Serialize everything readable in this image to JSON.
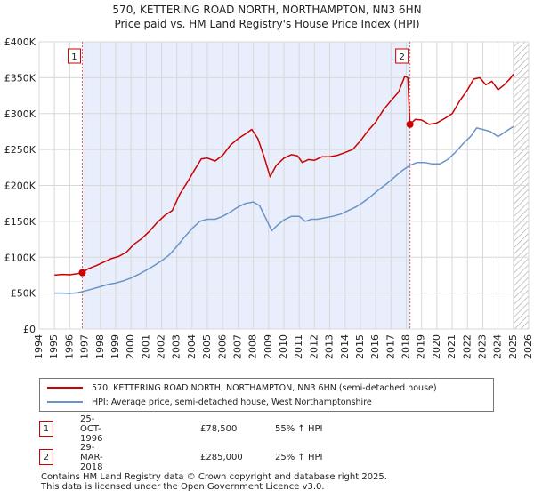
{
  "chart_data": {
    "type": "line",
    "title": "570, KETTERING ROAD NORTH, NORTHAMPTON, NN3 6HN",
    "subtitle": "Price paid vs. HM Land Registry's House Price Index (HPI)",
    "xlim": [
      1994,
      2026
    ],
    "ylim": [
      0,
      400000
    ],
    "x_ticks": [
      "1994",
      "1995",
      "1996",
      "1997",
      "1998",
      "1999",
      "2000",
      "2001",
      "2002",
      "2003",
      "2004",
      "2005",
      "2006",
      "2007",
      "2008",
      "2009",
      "2010",
      "2011",
      "2012",
      "2013",
      "2014",
      "2015",
      "2016",
      "2017",
      "2018",
      "2019",
      "2020",
      "2021",
      "2022",
      "2023",
      "2024",
      "2025",
      "2026"
    ],
    "y_ticks": [
      {
        "value": 0,
        "label": "£0"
      },
      {
        "value": 50000,
        "label": "£50K"
      },
      {
        "value": 100000,
        "label": "£100K"
      },
      {
        "value": 150000,
        "label": "£150K"
      },
      {
        "value": 200000,
        "label": "£200K"
      },
      {
        "value": 250000,
        "label": "£250K"
      },
      {
        "value": 300000,
        "label": "£300K"
      },
      {
        "value": 350000,
        "label": "£350K"
      },
      {
        "value": 400000,
        "label": "£400K"
      }
    ],
    "grid": true,
    "shaded_span": [
      1996.82,
      2018.24
    ],
    "hatched_after": 2025.0,
    "series": [
      {
        "name": "570, KETTERING ROAD NORTH, NORTHAMPTON, NN3 6HN (semi-detached house)",
        "color": "#cc0000",
        "points": [
          [
            1995.0,
            75000
          ],
          [
            1995.5,
            76000
          ],
          [
            1996.0,
            75500
          ],
          [
            1996.5,
            77000
          ],
          [
            1996.82,
            78500
          ],
          [
            1997.2,
            84000
          ],
          [
            1997.7,
            88000
          ],
          [
            1998.2,
            93000
          ],
          [
            1998.7,
            98000
          ],
          [
            1999.2,
            101000
          ],
          [
            1999.7,
            107000
          ],
          [
            2000.2,
            118000
          ],
          [
            2000.7,
            126000
          ],
          [
            2001.2,
            136000
          ],
          [
            2001.7,
            148000
          ],
          [
            2002.2,
            158000
          ],
          [
            2002.7,
            165000
          ],
          [
            2003.2,
            188000
          ],
          [
            2003.7,
            205000
          ],
          [
            2004.2,
            223000
          ],
          [
            2004.6,
            237000
          ],
          [
            2005.0,
            238000
          ],
          [
            2005.5,
            234000
          ],
          [
            2006.0,
            242000
          ],
          [
            2006.5,
            256000
          ],
          [
            2007.0,
            265000
          ],
          [
            2007.5,
            272000
          ],
          [
            2007.9,
            278000
          ],
          [
            2008.3,
            265000
          ],
          [
            2008.7,
            240000
          ],
          [
            2009.1,
            212000
          ],
          [
            2009.5,
            228000
          ],
          [
            2010.0,
            238000
          ],
          [
            2010.5,
            243000
          ],
          [
            2010.9,
            241000
          ],
          [
            2011.2,
            232000
          ],
          [
            2011.6,
            236000
          ],
          [
            2012.0,
            235000
          ],
          [
            2012.5,
            240000
          ],
          [
            2013.0,
            240000
          ],
          [
            2013.5,
            242000
          ],
          [
            2014.0,
            246000
          ],
          [
            2014.5,
            250000
          ],
          [
            2015.0,
            262000
          ],
          [
            2015.5,
            276000
          ],
          [
            2016.0,
            288000
          ],
          [
            2016.5,
            305000
          ],
          [
            2017.0,
            318000
          ],
          [
            2017.5,
            330000
          ],
          [
            2017.9,
            352000
          ],
          [
            2018.1,
            350000
          ],
          [
            2018.24,
            285000
          ],
          [
            2018.6,
            292000
          ],
          [
            2019.0,
            291000
          ],
          [
            2019.5,
            285000
          ],
          [
            2020.0,
            287000
          ],
          [
            2020.5,
            293000
          ],
          [
            2021.0,
            300000
          ],
          [
            2021.5,
            318000
          ],
          [
            2022.0,
            333000
          ],
          [
            2022.4,
            348000
          ],
          [
            2022.8,
            350000
          ],
          [
            2023.2,
            340000
          ],
          [
            2023.6,
            345000
          ],
          [
            2024.0,
            333000
          ],
          [
            2024.4,
            340000
          ],
          [
            2024.8,
            349000
          ],
          [
            2025.0,
            355000
          ]
        ]
      },
      {
        "name": "HPI: Average price, semi-detached house, West Northamptonshire",
        "color": "#6a93c8",
        "points": [
          [
            1995.0,
            50000
          ],
          [
            1995.5,
            50000
          ],
          [
            1996.0,
            49500
          ],
          [
            1996.5,
            50500
          ],
          [
            1997.0,
            53000
          ],
          [
            1997.5,
            56000
          ],
          [
            1998.0,
            59000
          ],
          [
            1998.5,
            62000
          ],
          [
            1999.0,
            64000
          ],
          [
            1999.5,
            67000
          ],
          [
            2000.0,
            71000
          ],
          [
            2000.5,
            76000
          ],
          [
            2001.0,
            82000
          ],
          [
            2001.5,
            88000
          ],
          [
            2002.0,
            95000
          ],
          [
            2002.5,
            103000
          ],
          [
            2003.0,
            115000
          ],
          [
            2003.5,
            128000
          ],
          [
            2004.0,
            140000
          ],
          [
            2004.5,
            150000
          ],
          [
            2005.0,
            153000
          ],
          [
            2005.5,
            153000
          ],
          [
            2006.0,
            157000
          ],
          [
            2006.5,
            163000
          ],
          [
            2007.0,
            170000
          ],
          [
            2007.5,
            175000
          ],
          [
            2008.0,
            177000
          ],
          [
            2008.4,
            172000
          ],
          [
            2008.8,
            155000
          ],
          [
            2009.2,
            137000
          ],
          [
            2009.6,
            145000
          ],
          [
            2010.0,
            152000
          ],
          [
            2010.5,
            157000
          ],
          [
            2011.0,
            157000
          ],
          [
            2011.4,
            150000
          ],
          [
            2011.8,
            153000
          ],
          [
            2012.2,
            153000
          ],
          [
            2012.7,
            155000
          ],
          [
            2013.2,
            157000
          ],
          [
            2013.7,
            160000
          ],
          [
            2014.2,
            165000
          ],
          [
            2014.7,
            170000
          ],
          [
            2015.2,
            177000
          ],
          [
            2015.7,
            185000
          ],
          [
            2016.2,
            194000
          ],
          [
            2016.7,
            202000
          ],
          [
            2017.2,
            211000
          ],
          [
            2017.7,
            220000
          ],
          [
            2018.24,
            228000
          ],
          [
            2018.7,
            232000
          ],
          [
            2019.2,
            232000
          ],
          [
            2019.7,
            230000
          ],
          [
            2020.2,
            230000
          ],
          [
            2020.7,
            236000
          ],
          [
            2021.2,
            246000
          ],
          [
            2021.7,
            258000
          ],
          [
            2022.2,
            268000
          ],
          [
            2022.6,
            280000
          ],
          [
            2023.0,
            278000
          ],
          [
            2023.5,
            275000
          ],
          [
            2024.0,
            268000
          ],
          [
            2024.5,
            275000
          ],
          [
            2025.0,
            282000
          ]
        ]
      }
    ],
    "markers": [
      {
        "label": "1",
        "x": 1996.82,
        "y": 78500
      },
      {
        "label": "2",
        "x": 2018.24,
        "y": 285000
      }
    ]
  },
  "legend": {
    "property_label": "570, KETTERING ROAD NORTH, NORTHAMPTON, NN3 6HN (semi-detached house)",
    "hpi_label": "HPI: Average price, semi-detached house, West Northamptonshire",
    "property_color": "#cc0000",
    "hpi_color": "#6a93c8"
  },
  "transactions": [
    {
      "num": "1",
      "date": "25-OCT-1996",
      "price": "£78,500",
      "hpi": "55% ↑ HPI"
    },
    {
      "num": "2",
      "date": "29-MAR-2018",
      "price": "£285,000",
      "hpi": "25% ↑ HPI"
    }
  ],
  "footer": {
    "line1": "Contains HM Land Registry data © Crown copyright and database right 2025.",
    "line2": "This data is licensed under the Open Government Licence v3.0."
  }
}
